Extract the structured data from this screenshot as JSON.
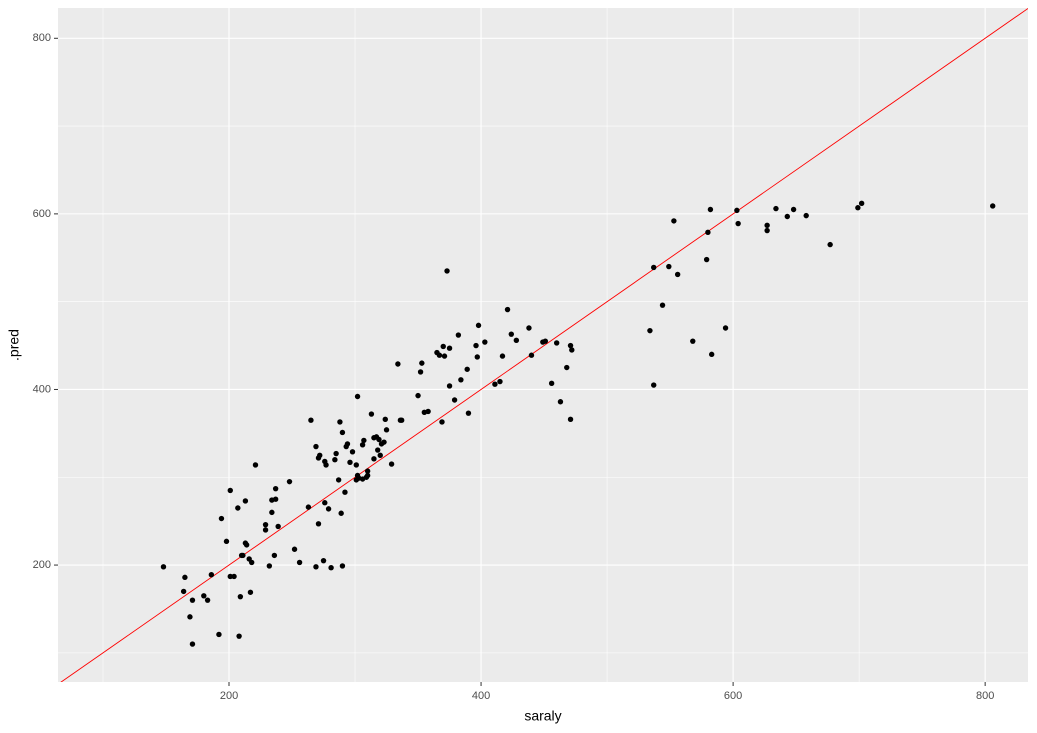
{
  "chart_data": {
    "type": "scatter",
    "x_label": "saraly",
    "y_label": ".pred",
    "xlim": [
      64.3,
      834
    ],
    "ylim": [
      66.8,
      834.5
    ],
    "xticks": [
      200,
      400,
      600,
      800
    ],
    "yticks": [
      200,
      400,
      600,
      800
    ],
    "x_minor_ticks": [
      100,
      300,
      500,
      700
    ],
    "y_minor_ticks": [
      100,
      300,
      500,
      700
    ],
    "grid": true,
    "color": "#000000",
    "reference_line": {
      "slope": 1,
      "intercept": 0,
      "color": "#ff0000"
    },
    "x": [
      148,
      165,
      164,
      171,
      169,
      171,
      180,
      183,
      186,
      192,
      194,
      198,
      201,
      201,
      204,
      207,
      208,
      209,
      210,
      211,
      213,
      213,
      214,
      216,
      217,
      218,
      221,
      229,
      229,
      232,
      234,
      234,
      236,
      237,
      237,
      239,
      248,
      252,
      256,
      263,
      265,
      269,
      269,
      271,
      271,
      272,
      275,
      276,
      276,
      277,
      279,
      281,
      284,
      285,
      287,
      288,
      289,
      290,
      290,
      292,
      293,
      294,
      296,
      298,
      301,
      301,
      302,
      302,
      303,
      306,
      306,
      307,
      309,
      310,
      310,
      313,
      315,
      315,
      317,
      318,
      319,
      320,
      321,
      323,
      324,
      325,
      329,
      334,
      336,
      337,
      350,
      352,
      353,
      355,
      358,
      365,
      367,
      369,
      370,
      371,
      373,
      375,
      375,
      379,
      382,
      384,
      389,
      390,
      396,
      398,
      397,
      403,
      411,
      415,
      417,
      421,
      424,
      428,
      438,
      440,
      449,
      451,
      456,
      460,
      463,
      468,
      471,
      471,
      472,
      534,
      537,
      537,
      544,
      549,
      553,
      556,
      568,
      579,
      580,
      582,
      583,
      594,
      603,
      604,
      627,
      627,
      634,
      643,
      648,
      658,
      677,
      699,
      702,
      806
    ],
    "values": [
      198,
      186,
      170,
      160,
      141,
      110,
      165,
      160,
      189,
      121,
      253,
      227,
      285,
      187,
      187,
      265,
      119,
      164,
      211,
      211,
      273,
      225,
      223,
      207,
      169,
      203,
      314,
      240,
      246,
      199,
      274,
      260,
      211,
      287,
      275,
      244,
      295,
      218,
      203,
      266,
      365,
      198,
      335,
      322,
      247,
      325,
      205,
      318,
      271,
      314,
      264,
      197,
      320,
      327,
      297,
      363,
      259,
      351,
      199,
      283,
      335,
      338,
      317,
      329,
      314,
      297,
      302,
      392,
      299,
      337,
      298,
      342,
      300,
      302,
      307,
      372,
      345,
      321,
      346,
      331,
      343,
      325,
      338,
      340,
      366,
      354,
      315,
      429,
      365,
      365,
      393,
      420,
      430,
      374,
      375,
      442,
      439,
      363,
      449,
      438,
      535,
      404,
      447,
      388,
      462,
      411,
      423,
      373,
      450,
      473,
      437,
      454,
      406,
      409,
      438,
      491,
      463,
      456,
      470,
      439,
      454,
      455,
      407,
      453,
      386,
      425,
      366,
      450,
      445,
      467,
      405,
      539,
      496,
      540,
      592,
      531,
      455,
      548,
      579,
      605,
      440,
      470,
      604,
      589,
      587,
      581,
      606,
      597,
      605,
      598,
      565,
      607,
      612,
      609
    ]
  }
}
